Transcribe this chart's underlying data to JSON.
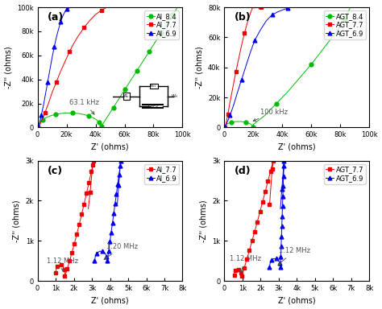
{
  "panel_a": {
    "label": "(a)",
    "xlabel": "Z' (ohms)",
    "ylabel": "-Z'' (ohms)",
    "xlim": [
      0,
      100000
    ],
    "ylim": [
      0,
      100000
    ],
    "xticks": [
      0,
      20000,
      40000,
      60000,
      80000,
      100000
    ],
    "yticks": [
      0,
      20000,
      40000,
      60000,
      80000,
      100000
    ],
    "xtick_labels": [
      "0",
      "20k",
      "40k",
      "60k",
      "80k",
      "100k"
    ],
    "ytick_labels": [
      "0",
      "20k",
      "40k",
      "60k",
      "80k",
      "100k"
    ],
    "annotation": "63.1 kHz",
    "series": [
      {
        "label": "Al_8.4",
        "color": "#00bb00",
        "marker": "o"
      },
      {
        "label": "Al_7.7",
        "color": "#ee0000",
        "marker": "s"
      },
      {
        "label": "Al_6.9",
        "color": "#0000ee",
        "marker": "^"
      }
    ]
  },
  "panel_b": {
    "label": "(b)",
    "xlabel": "Z' (ohms)",
    "ylabel": "-Z'' (ohms)",
    "xlim": [
      0,
      100000
    ],
    "ylim": [
      0,
      80000
    ],
    "xticks": [
      0,
      20000,
      40000,
      60000,
      80000,
      100000
    ],
    "yticks": [
      0,
      20000,
      40000,
      60000,
      80000
    ],
    "xtick_labels": [
      "0",
      "20k",
      "40k",
      "60k",
      "80k",
      "100k"
    ],
    "ytick_labels": [
      "0",
      "20k",
      "40k",
      "60k",
      "80k"
    ],
    "annotation": "100 kHz",
    "series": [
      {
        "label": "AGT_8.4",
        "color": "#00bb00",
        "marker": "o"
      },
      {
        "label": "AGT_7.7",
        "color": "#ee0000",
        "marker": "s"
      },
      {
        "label": "AGT_6.9",
        "color": "#0000ee",
        "marker": "^"
      }
    ]
  },
  "panel_c": {
    "label": "(c)",
    "xlabel": "Z' (ohms)",
    "ylabel": "-Z'' (ohms)",
    "xlim": [
      0,
      8000
    ],
    "ylim": [
      0,
      3000
    ],
    "xticks": [
      0,
      1000,
      2000,
      3000,
      4000,
      5000,
      6000,
      7000,
      8000
    ],
    "yticks": [
      0,
      1000,
      2000,
      3000
    ],
    "xtick_labels": [
      "0",
      "1k",
      "2k",
      "3k",
      "4k",
      "5k",
      "6k",
      "7k",
      "8k"
    ],
    "ytick_labels": [
      "0",
      "1k",
      "2k",
      "3k"
    ],
    "series": [
      {
        "label": "Al_7.7",
        "color": "#ee0000",
        "marker": "s"
      },
      {
        "label": "Al_6.9",
        "color": "#0000ee",
        "marker": "^"
      }
    ]
  },
  "panel_d": {
    "label": "(d)",
    "xlabel": "Z' (ohms)",
    "ylabel": "-Z'' (ohms)",
    "xlim": [
      0,
      8000
    ],
    "ylim": [
      0,
      3000
    ],
    "xticks": [
      0,
      1000,
      2000,
      3000,
      4000,
      5000,
      6000,
      7000,
      8000
    ],
    "yticks": [
      0,
      1000,
      2000,
      3000
    ],
    "xtick_labels": [
      "0",
      "1k",
      "2k",
      "3k",
      "4k",
      "5k",
      "6k",
      "7k",
      "8k"
    ],
    "ytick_labels": [
      "0",
      "1k",
      "2k",
      "3k"
    ],
    "series": [
      {
        "label": "AGT_7.7",
        "color": "#ee0000",
        "marker": "s"
      },
      {
        "label": "AGT_6.9",
        "color": "#0000ee",
        "marker": "^"
      }
    ]
  },
  "bg_color": "#ffffff",
  "fs_label": 7,
  "fs_tick": 6,
  "fs_legend": 6,
  "fs_ann": 6,
  "fs_panel": 9
}
